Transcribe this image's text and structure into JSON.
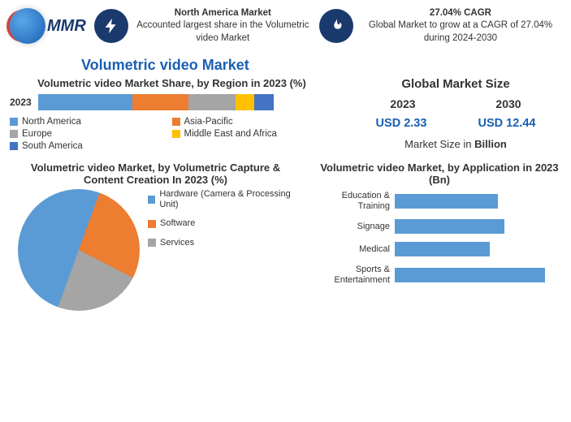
{
  "header": {
    "logo_text": "MMR",
    "block1": {
      "title": "North America Market",
      "sub": "Accounted largest share in the Volumetric video Market"
    },
    "block2": {
      "title": "27.04% CAGR",
      "sub": "Global Market to grow at a CAGR of 27.04% during 2024-2030"
    }
  },
  "main_title": "Volumetric video Market",
  "colors": {
    "blue": "#5b9bd5",
    "orange": "#ed7d31",
    "grey": "#a5a5a5",
    "yellow": "#ffc000",
    "darkblue": "#4472c4",
    "accent": "#1a5fb4",
    "dark_navy": "#1a3a6e"
  },
  "region_chart": {
    "type": "stacked-bar",
    "title": "Volumetric video Market Share, by Region in 2023 (%)",
    "year": "2023",
    "segments": [
      {
        "label": "North America",
        "value": 40,
        "color": "#5b9bd5"
      },
      {
        "label": "Asia-Pacific",
        "value": 24,
        "color": "#ed7d31"
      },
      {
        "label": "Europe",
        "value": 20,
        "color": "#a5a5a5"
      },
      {
        "label": "Middle East and Africa",
        "value": 8,
        "color": "#ffc000"
      },
      {
        "label": "South America",
        "value": 8,
        "color": "#4472c4"
      }
    ],
    "title_fontsize": 13,
    "label_fontsize": 11.5
  },
  "global_size": {
    "title": "Global Market Size",
    "years": [
      "2023",
      "2030"
    ],
    "values": [
      "USD 2.33",
      "USD 12.44"
    ],
    "note_prefix": "Market Size in ",
    "note_bold": "Billion",
    "value_color": "#1a5fb4",
    "title_fontsize": 15
  },
  "pie_chart": {
    "type": "pie",
    "title": "Volumetric video Market, by Volumetric Capture & Content Creation In 2023 (%)",
    "slices": [
      {
        "label": "Hardware (Camera & Processing Unit)",
        "value": 50,
        "color": "#5b9bd5"
      },
      {
        "label": "Software",
        "value": 27,
        "color": "#ed7d31"
      },
      {
        "label": "Services",
        "value": 23,
        "color": "#a5a5a5"
      }
    ],
    "title_fontsize": 13,
    "legend_fontsize": 11
  },
  "app_chart": {
    "type": "bar",
    "title": "Volumetric video Market, by Application in 2023 (Bn)",
    "bars": [
      {
        "label": "Education & Training",
        "value": 62
      },
      {
        "label": "Signage",
        "value": 66
      },
      {
        "label": "Medical",
        "value": 57
      },
      {
        "label": "Sports & Entertainment",
        "value": 90
      }
    ],
    "bar_color": "#5b9bd5",
    "max": 100,
    "title_fontsize": 13,
    "label_fontsize": 11
  }
}
